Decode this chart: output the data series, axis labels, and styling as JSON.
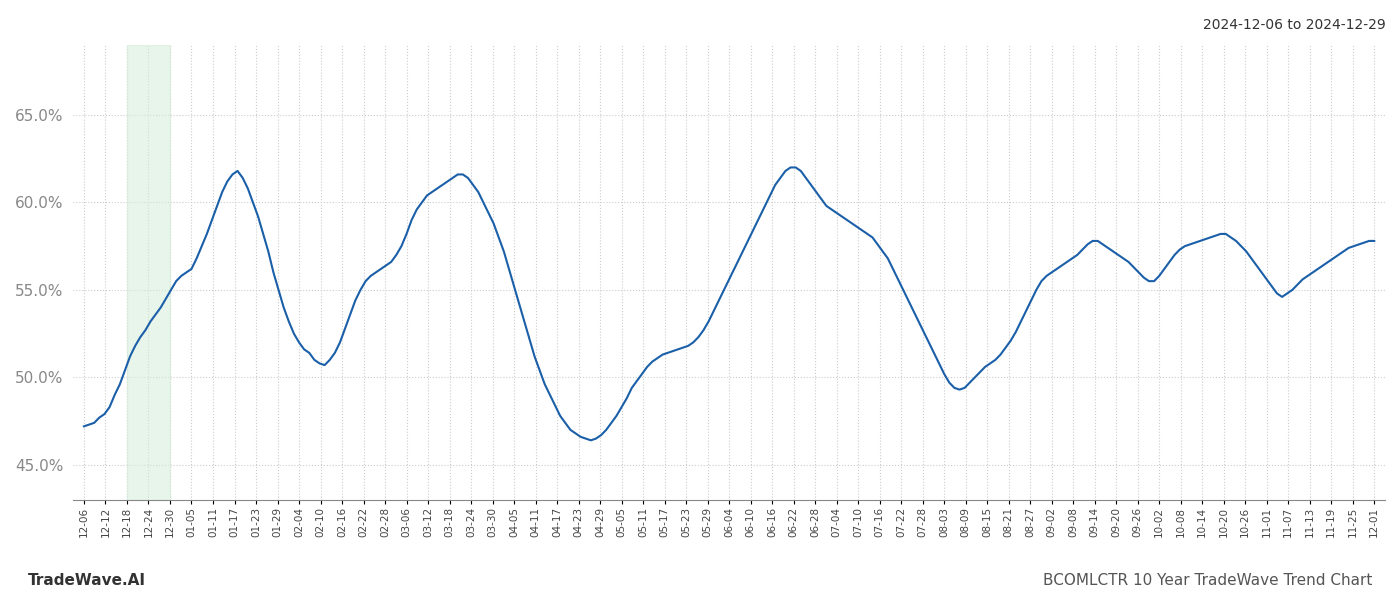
{
  "title_top_right": "2024-12-06 to 2024-12-29",
  "footer_left": "TradeWave.AI",
  "footer_right": "BCOMLCTR 10 Year TradeWave Trend Chart",
  "line_color": "#1a5fa8",
  "line_width": 1.5,
  "shade_color": "#d4edda",
  "shade_alpha": 0.55,
  "ylim": [
    0.43,
    0.69
  ],
  "yticks": [
    0.45,
    0.5,
    0.55,
    0.6,
    0.65
  ],
  "background_color": "#ffffff",
  "grid_color": "#cccccc",
  "grid_style": "dotted",
  "x_labels": [
    "12-06",
    "12-12",
    "12-18",
    "12-24",
    "12-30",
    "01-05",
    "01-11",
    "01-17",
    "01-23",
    "01-29",
    "02-04",
    "02-10",
    "02-16",
    "02-22",
    "02-28",
    "03-06",
    "03-12",
    "03-18",
    "03-24",
    "03-30",
    "04-05",
    "04-11",
    "04-17",
    "04-23",
    "04-29",
    "05-05",
    "05-11",
    "05-17",
    "05-23",
    "05-29",
    "06-04",
    "06-10",
    "06-16",
    "06-22",
    "06-28",
    "07-04",
    "07-10",
    "07-16",
    "07-22",
    "07-28",
    "08-03",
    "08-09",
    "08-15",
    "08-21",
    "08-27",
    "09-02",
    "09-08",
    "09-14",
    "09-20",
    "09-26",
    "10-02",
    "10-08",
    "10-14",
    "10-20",
    "10-26",
    "11-01",
    "11-07",
    "11-13",
    "11-19",
    "11-25",
    "12-01"
  ],
  "shade_label_start": "12-18",
  "shade_label_end": "12-30",
  "y_values": [
    0.472,
    0.473,
    0.474,
    0.477,
    0.479,
    0.483,
    0.49,
    0.496,
    0.504,
    0.512,
    0.518,
    0.523,
    0.527,
    0.532,
    0.536,
    0.54,
    0.545,
    0.55,
    0.555,
    0.558,
    0.56,
    0.562,
    0.568,
    0.575,
    0.582,
    0.59,
    0.598,
    0.606,
    0.612,
    0.616,
    0.618,
    0.614,
    0.608,
    0.6,
    0.592,
    0.582,
    0.572,
    0.56,
    0.55,
    0.54,
    0.532,
    0.525,
    0.52,
    0.516,
    0.514,
    0.51,
    0.508,
    0.507,
    0.51,
    0.514,
    0.52,
    0.528,
    0.536,
    0.544,
    0.55,
    0.555,
    0.558,
    0.56,
    0.562,
    0.564,
    0.566,
    0.57,
    0.575,
    0.582,
    0.59,
    0.596,
    0.6,
    0.604,
    0.606,
    0.608,
    0.61,
    0.612,
    0.614,
    0.616,
    0.616,
    0.614,
    0.61,
    0.606,
    0.6,
    0.594,
    0.588,
    0.58,
    0.572,
    0.562,
    0.552,
    0.542,
    0.532,
    0.522,
    0.512,
    0.504,
    0.496,
    0.49,
    0.484,
    0.478,
    0.474,
    0.47,
    0.468,
    0.466,
    0.465,
    0.464,
    0.465,
    0.467,
    0.47,
    0.474,
    0.478,
    0.483,
    0.488,
    0.494,
    0.498,
    0.502,
    0.506,
    0.509,
    0.511,
    0.513,
    0.514,
    0.515,
    0.516,
    0.517,
    0.518,
    0.52,
    0.523,
    0.527,
    0.532,
    0.538,
    0.544,
    0.55,
    0.556,
    0.562,
    0.568,
    0.574,
    0.58,
    0.586,
    0.592,
    0.598,
    0.604,
    0.61,
    0.614,
    0.618,
    0.62,
    0.62,
    0.618,
    0.614,
    0.61,
    0.606,
    0.602,
    0.598,
    0.596,
    0.594,
    0.592,
    0.59,
    0.588,
    0.586,
    0.584,
    0.582,
    0.58,
    0.576,
    0.572,
    0.568,
    0.562,
    0.556,
    0.55,
    0.544,
    0.538,
    0.532,
    0.526,
    0.52,
    0.514,
    0.508,
    0.502,
    0.497,
    0.494,
    0.493,
    0.494,
    0.497,
    0.5,
    0.503,
    0.506,
    0.508,
    0.51,
    0.513,
    0.517,
    0.521,
    0.526,
    0.532,
    0.538,
    0.544,
    0.55,
    0.555,
    0.558,
    0.56,
    0.562,
    0.564,
    0.566,
    0.568,
    0.57,
    0.573,
    0.576,
    0.578,
    0.578,
    0.576,
    0.574,
    0.572,
    0.57,
    0.568,
    0.566,
    0.563,
    0.56,
    0.557,
    0.555,
    0.555,
    0.558,
    0.562,
    0.566,
    0.57,
    0.573,
    0.575,
    0.576,
    0.577,
    0.578,
    0.579,
    0.58,
    0.581,
    0.582,
    0.582,
    0.58,
    0.578,
    0.575,
    0.572,
    0.568,
    0.564,
    0.56,
    0.556,
    0.552,
    0.548,
    0.546,
    0.548,
    0.55,
    0.553,
    0.556,
    0.558,
    0.56,
    0.562,
    0.564,
    0.566,
    0.568,
    0.57,
    0.572,
    0.574,
    0.575,
    0.576,
    0.577,
    0.578,
    0.578
  ]
}
